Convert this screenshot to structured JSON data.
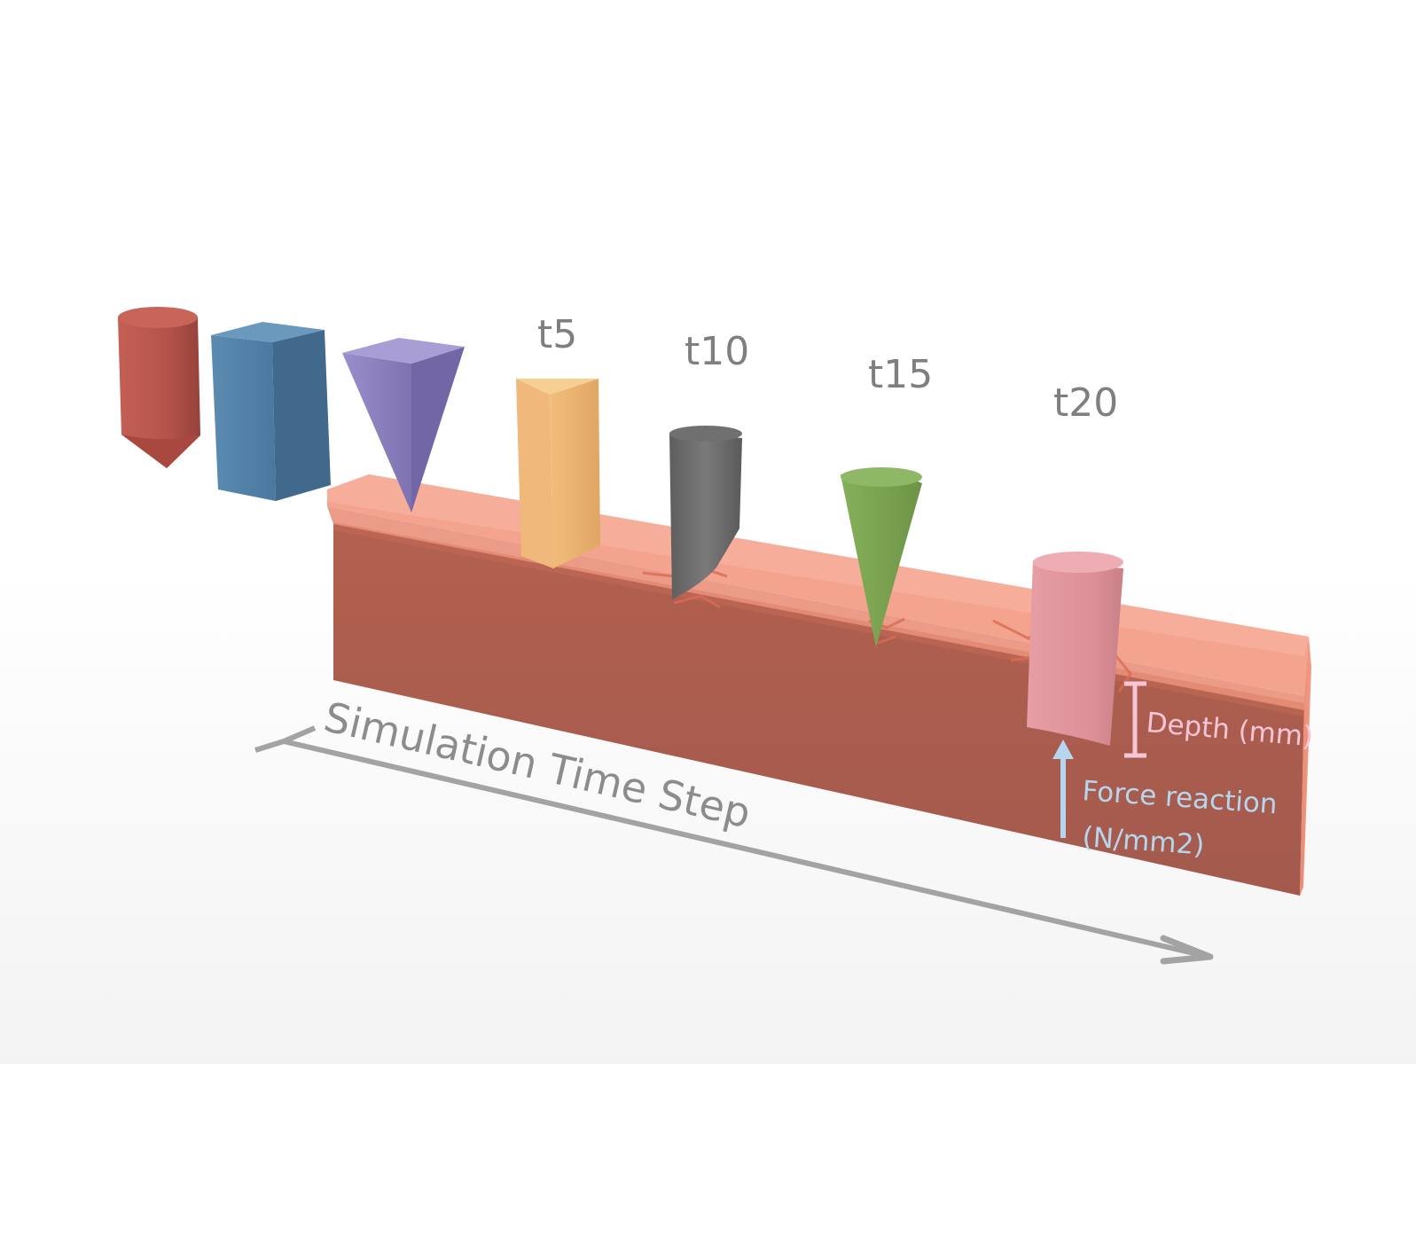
{
  "time_labels": [
    "t5",
    "t10",
    "t15",
    "t20"
  ],
  "axis_label": "Simulation Time Step",
  "depth_label": "Depth (mm)",
  "force_label_line1": "Force reaction",
  "force_label_line2": "(N/mm2)",
  "colors": {
    "block_front": "#a95c4e",
    "block_top": "#f4a590",
    "block_side": "#e78d78",
    "red_indenter": "#b5534a",
    "blue_indenter": "#4f7ea3",
    "purple_indenter": "#8b7fbd",
    "yellow_indenter": "#e9b06a",
    "gray_indenter": "#676767",
    "green_indenter": "#7ea552",
    "pink_indenter": "#e3959c",
    "arrow": "#9b9b9b",
    "depth": "#f6c6d6",
    "force": "#b5d6ee"
  },
  "indenters": [
    "red-cylinder-cone",
    "blue-rectangular-prism",
    "purple-triangular-pyramid",
    "yellow-triangular-prism",
    "gray-wedge-cylinder",
    "green-cone",
    "pink-cylinder"
  ]
}
